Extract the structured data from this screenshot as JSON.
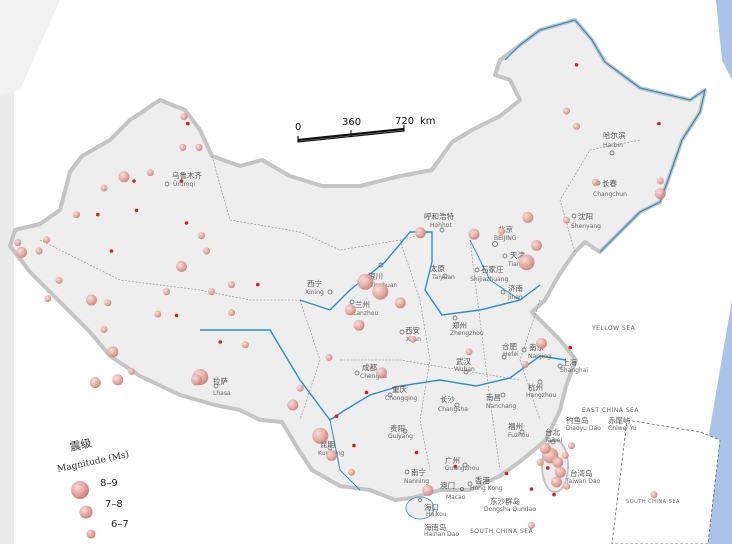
{
  "scale_bar": {
    "ticks": [
      "0",
      "360",
      "720"
    ],
    "unit": "km"
  },
  "legend": {
    "title_cn": "震级",
    "title_en": "Magnitude (Ms)",
    "classes": [
      {
        "id": "l",
        "label": "8–9"
      },
      {
        "id": "m",
        "label": "7–8"
      },
      {
        "id": "s",
        "label": "6–7"
      }
    ]
  },
  "colors": {
    "quake_fill": "#e8a8a0",
    "quake_dot": "#d42020",
    "river": "#2a8fc8",
    "land": "#eeeeee",
    "border": "#b8b8b8",
    "sea_band": "#a9c4e8"
  },
  "cities": [
    {
      "cn": "乌鲁木齐",
      "en": "Ürümqi"
    },
    {
      "cn": "哈尔滨",
      "en": "Harbin"
    },
    {
      "cn": "长春",
      "en": "Changchun"
    },
    {
      "cn": "沈阳",
      "en": "Shenyang"
    },
    {
      "cn": "呼和浩特",
      "en": "Hohhot"
    },
    {
      "cn": "北京",
      "en": "BEIJING"
    },
    {
      "cn": "天津",
      "en": "Tianjin"
    },
    {
      "cn": "石家庄",
      "en": "Shijiazhuang"
    },
    {
      "cn": "太原",
      "en": "Taiyuan"
    },
    {
      "cn": "济南",
      "en": "Jinan"
    },
    {
      "cn": "西宁",
      "en": "Xining"
    },
    {
      "cn": "银川",
      "en": "Yinchuan"
    },
    {
      "cn": "兰州",
      "en": "Lanzhou"
    },
    {
      "cn": "郑州",
      "en": "Zhengzhou"
    },
    {
      "cn": "西安",
      "en": "Xi'an"
    },
    {
      "cn": "合肥",
      "en": "Hefei"
    },
    {
      "cn": "南京",
      "en": "Nanjing"
    },
    {
      "cn": "上海",
      "en": "Shanghai"
    },
    {
      "cn": "武汉",
      "en": "Wuhan"
    },
    {
      "cn": "成都",
      "en": "Chengdu"
    },
    {
      "cn": "重庆",
      "en": "Chongqing"
    },
    {
      "cn": "长沙",
      "en": "Changsha"
    },
    {
      "cn": "南昌",
      "en": "Nanchang"
    },
    {
      "cn": "杭州",
      "en": "Hangzhou"
    },
    {
      "cn": "贵阳",
      "en": "Guiyang"
    },
    {
      "cn": "昆明",
      "en": "Kunming"
    },
    {
      "cn": "福州",
      "en": "Fuzhou"
    },
    {
      "cn": "台北",
      "en": "Taibei"
    },
    {
      "cn": "广州",
      "en": "Guangzhou"
    },
    {
      "cn": "南宁",
      "en": "Nanning"
    },
    {
      "cn": "香港",
      "en": "Hong Kong"
    },
    {
      "cn": "澳门",
      "en": "Macao"
    },
    {
      "cn": "海口",
      "en": "Haikou"
    },
    {
      "cn": "拉萨",
      "en": "Lhasa"
    }
  ],
  "islands": [
    {
      "cn": "钓鱼岛",
      "en": "Diaoyu Dao"
    },
    {
      "cn": "赤尾屿",
      "en": "Chiwei Yu"
    },
    {
      "cn": "台湾岛",
      "en": "Taiwan Dao"
    },
    {
      "cn": "东沙群岛",
      "en": "Dongsha Qundao"
    },
    {
      "cn": "海南岛",
      "en": "Hainan Dao"
    }
  ],
  "seas": [
    "YELLOW SEA",
    "EAST CHINA SEA",
    "SOUTH CHINA SEA",
    "SOUTH CHINA SEA"
  ],
  "earthquakes": [
    {
      "lon": 89.7,
      "lat": 48.8,
      "c": "s"
    },
    {
      "lon": 90.0,
      "lat": 48.3,
      "c": "d"
    },
    {
      "lon": 89.6,
      "lat": 46.6,
      "c": "s"
    },
    {
      "lon": 90.9,
      "lat": 46.6,
      "c": "s"
    },
    {
      "lon": 84.9,
      "lat": 44.5,
      "c": "m"
    },
    {
      "lon": 85.7,
      "lat": 44.2,
      "c": "d"
    },
    {
      "lon": 87.0,
      "lat": 44.8,
      "c": "s"
    },
    {
      "lon": 89.5,
      "lat": 44.2,
      "c": "d"
    },
    {
      "lon": 83.3,
      "lat": 43.7,
      "c": "s"
    },
    {
      "lon": 82.8,
      "lat": 41.8,
      "c": "d"
    },
    {
      "lon": 85.9,
      "lat": 42.1,
      "c": "d"
    },
    {
      "lon": 81.1,
      "lat": 41.8,
      "c": "s"
    },
    {
      "lon": 78.7,
      "lat": 40.0,
      "c": "s"
    },
    {
      "lon": 76.4,
      "lat": 39.8,
      "c": "s"
    },
    {
      "lon": 76.7,
      "lat": 39.1,
      "c": "m"
    },
    {
      "lon": 78.1,
      "lat": 39.2,
      "c": "s"
    },
    {
      "lon": 83.9,
      "lat": 39.2,
      "c": "d"
    },
    {
      "lon": 89.9,
      "lat": 41.2,
      "c": "d"
    },
    {
      "lon": 91.1,
      "lat": 40.3,
      "c": "s"
    },
    {
      "lon": 91.5,
      "lat": 39.2,
      "c": "s"
    },
    {
      "lon": 89.5,
      "lat": 38.1,
      "c": "m"
    },
    {
      "lon": 93.5,
      "lat": 36.8,
      "c": "s"
    },
    {
      "lon": 95.6,
      "lat": 36.8,
      "c": "d"
    },
    {
      "lon": 79.7,
      "lat": 37.1,
      "c": "s"
    },
    {
      "lon": 78.8,
      "lat": 35.8,
      "c": "s"
    },
    {
      "lon": 82.3,
      "lat": 35.7,
      "c": "m"
    },
    {
      "lon": 83.6,
      "lat": 35.5,
      "c": "s"
    },
    {
      "lon": 88.3,
      "lat": 36.3,
      "c": "s"
    },
    {
      "lon": 87.6,
      "lat": 34.7,
      "c": "s"
    },
    {
      "lon": 89.1,
      "lat": 34.6,
      "c": "d"
    },
    {
      "lon": 83.3,
      "lat": 33.6,
      "c": "s"
    },
    {
      "lon": 84.0,
      "lat": 32.0,
      "c": "m"
    },
    {
      "lon": 84.4,
      "lat": 30.0,
      "c": "m"
    },
    {
      "lon": 82.6,
      "lat": 29.8,
      "c": "m"
    },
    {
      "lon": 85.5,
      "lat": 30.6,
      "c": "s"
    },
    {
      "lon": 91.0,
      "lat": 30.2,
      "c": "l"
    },
    {
      "lon": 90.7,
      "lat": 30.0,
      "c": "m"
    },
    {
      "lon": 91.9,
      "lat": 36.3,
      "c": "s"
    },
    {
      "lon": 93.5,
      "lat": 34.8,
      "c": "s"
    },
    {
      "lon": 92.6,
      "lat": 32.7,
      "c": "d"
    },
    {
      "lon": 94.6,
      "lat": 32.5,
      "c": "s"
    },
    {
      "lon": 104.2,
      "lat": 37.0,
      "c": "l"
    },
    {
      "lon": 105.4,
      "lat": 36.3,
      "c": "l"
    },
    {
      "lon": 103.0,
      "lat": 35.0,
      "c": "m"
    },
    {
      "lon": 103.7,
      "lat": 33.9,
      "c": "m"
    },
    {
      "lon": 107.0,
      "lat": 35.5,
      "c": "m"
    },
    {
      "lon": 108.6,
      "lat": 40.5,
      "c": "m"
    },
    {
      "lon": 112.9,
      "lat": 40.4,
      "c": "m"
    },
    {
      "lon": 115.1,
      "lat": 40.6,
      "c": "s"
    },
    {
      "lon": 117.2,
      "lat": 41.6,
      "c": "m"
    },
    {
      "lon": 117.9,
      "lat": 39.6,
      "c": "m"
    },
    {
      "lon": 117.1,
      "lat": 38.4,
      "c": "l"
    },
    {
      "lon": 120.3,
      "lat": 41.4,
      "c": "s"
    },
    {
      "lon": 120.3,
      "lat": 49.2,
      "c": "s"
    },
    {
      "lon": 121.1,
      "lat": 48.1,
      "c": "s"
    },
    {
      "lon": 127.8,
      "lat": 43.3,
      "c": "m"
    },
    {
      "lon": 127.8,
      "lat": 44.2,
      "c": "s"
    },
    {
      "lon": 122.6,
      "lat": 44.1,
      "c": "s"
    },
    {
      "lon": 127.7,
      "lat": 48.3,
      "c": "d"
    },
    {
      "lon": 121.1,
      "lat": 52.5,
      "c": "d"
    },
    {
      "lon": 105.5,
      "lat": 30.5,
      "c": "m"
    },
    {
      "lon": 104.3,
      "lat": 29.1,
      "c": "d"
    },
    {
      "lon": 108.0,
      "lat": 32.9,
      "c": "s"
    },
    {
      "lon": 112.5,
      "lat": 32.0,
      "c": "s"
    },
    {
      "lon": 117.0,
      "lat": 31.1,
      "c": "s"
    },
    {
      "lon": 118.3,
      "lat": 32.6,
      "c": "m"
    },
    {
      "lon": 120.6,
      "lat": 32.3,
      "c": "d"
    },
    {
      "lon": 101.3,
      "lat": 31.6,
      "c": "s"
    },
    {
      "lon": 101.5,
      "lat": 24.6,
      "c": "m"
    },
    {
      "lon": 103.1,
      "lat": 23.4,
      "c": "s"
    },
    {
      "lon": 99.0,
      "lat": 29.4,
      "c": "s"
    },
    {
      "lon": 98.4,
      "lat": 28.2,
      "c": "m"
    },
    {
      "lon": 100.6,
      "lat": 26.0,
      "c": "l"
    },
    {
      "lon": 101.9,
      "lat": 27.4,
      "c": "d"
    },
    {
      "lon": 103.3,
      "lat": 25.3,
      "c": "d"
    },
    {
      "lon": 108.3,
      "lat": 24.8,
      "c": "d"
    },
    {
      "lon": 111.4,
      "lat": 23.8,
      "c": "d"
    },
    {
      "lon": 115.5,
      "lat": 23.3,
      "c": "d"
    },
    {
      "lon": 117.5,
      "lat": 22.2,
      "c": "d"
    },
    {
      "lon": 109.2,
      "lat": 22.1,
      "c": "m"
    },
    {
      "lon": 119.0,
      "lat": 24.6,
      "c": "l"
    },
    {
      "lon": 118.6,
      "lat": 25.1,
      "c": "m"
    },
    {
      "lon": 119.6,
      "lat": 24.1,
      "c": "m"
    },
    {
      "lon": 119.8,
      "lat": 23.4,
      "c": "m"
    },
    {
      "lon": 120.2,
      "lat": 24.6,
      "c": "s"
    },
    {
      "lon": 120.7,
      "lat": 25.3,
      "c": "s"
    },
    {
      "lon": 119.5,
      "lat": 22.7,
      "c": "m"
    },
    {
      "lon": 118.8,
      "lat": 23.7,
      "c": "d"
    },
    {
      "lon": 120.3,
      "lat": 22.4,
      "c": "s"
    },
    {
      "lon": 118.2,
      "lat": 24.1,
      "c": "s"
    },
    {
      "lon": 119.3,
      "lat": 21.8,
      "c": "d"
    },
    {
      "lon": 117.5,
      "lat": 19.6,
      "c": "s"
    },
    {
      "lon": 127.3,
      "lat": 21.8,
      "c": "s"
    }
  ]
}
